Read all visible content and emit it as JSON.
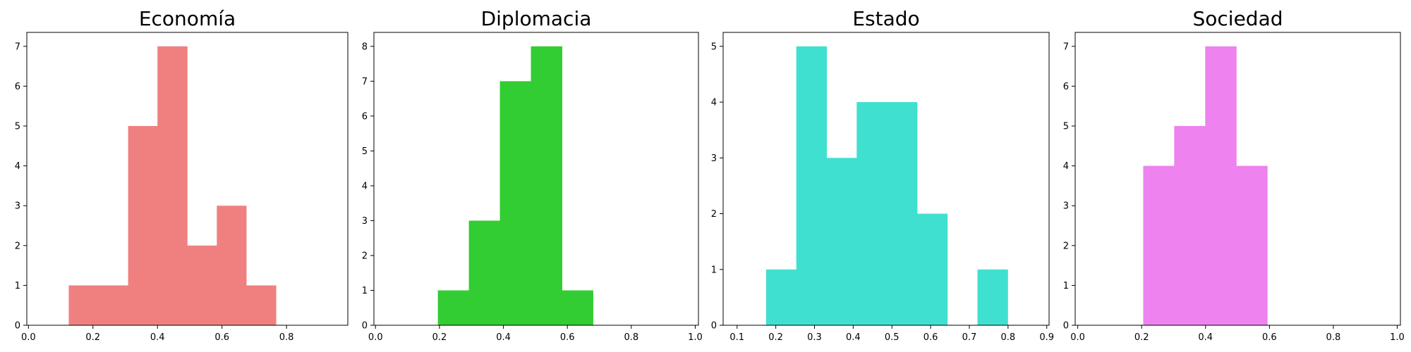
{
  "chart_data": [
    {
      "type": "bar",
      "subtype": "histogram",
      "title": "Economía",
      "color": "#f08080",
      "xlim": [
        -0.005,
        0.99
      ],
      "ylim": [
        0,
        7.35
      ],
      "xticks": [
        0.0,
        0.2,
        0.4,
        0.6,
        0.8
      ],
      "xtick_labels": [
        "0.0",
        "0.2",
        "0.4",
        "0.6",
        "0.8"
      ],
      "yticks": [
        0,
        1,
        2,
        3,
        4,
        5,
        6,
        7
      ],
      "ytick_labels": [
        "0",
        "1",
        "2",
        "3",
        "4",
        "5",
        "6",
        "7"
      ],
      "bins": [
        {
          "x0": 0.125,
          "x1": 0.217,
          "value": 1
        },
        {
          "x0": 0.217,
          "x1": 0.309,
          "value": 1
        },
        {
          "x0": 0.309,
          "x1": 0.4,
          "value": 5
        },
        {
          "x0": 0.4,
          "x1": 0.492,
          "value": 7
        },
        {
          "x0": 0.492,
          "x1": 0.584,
          "value": 2
        },
        {
          "x0": 0.584,
          "x1": 0.675,
          "value": 3
        },
        {
          "x0": 0.675,
          "x1": 0.767,
          "value": 1
        }
      ]
    },
    {
      "type": "bar",
      "subtype": "histogram",
      "title": "Diplomacia",
      "color": "#32cd32",
      "xlim": [
        -0.005,
        1.01
      ],
      "ylim": [
        0,
        8.4
      ],
      "xticks": [
        0.0,
        0.2,
        0.4,
        0.6,
        0.8,
        1.0
      ],
      "xtick_labels": [
        "0.0",
        "0.2",
        "0.4",
        "0.6",
        "0.8",
        "1.0"
      ],
      "yticks": [
        0,
        1,
        2,
        3,
        4,
        5,
        6,
        7,
        8
      ],
      "ytick_labels": [
        "0",
        "1",
        "2",
        "3",
        "4",
        "5",
        "6",
        "7",
        "8"
      ],
      "bins": [
        {
          "x0": 0.195,
          "x1": 0.292,
          "value": 1
        },
        {
          "x0": 0.292,
          "x1": 0.389,
          "value": 3
        },
        {
          "x0": 0.389,
          "x1": 0.486,
          "value": 7
        },
        {
          "x0": 0.486,
          "x1": 0.583,
          "value": 8
        },
        {
          "x0": 0.583,
          "x1": 0.68,
          "value": 1
        }
      ]
    },
    {
      "type": "bar",
      "subtype": "histogram",
      "title": "Estado",
      "color": "#40e0d0",
      "xlim": [
        0.064,
        0.906
      ],
      "ylim": [
        0,
        5.25
      ],
      "xticks": [
        0.1,
        0.2,
        0.3,
        0.4,
        0.5,
        0.6,
        0.7,
        0.8,
        0.9
      ],
      "xtick_labels": [
        "0.1",
        "0.2",
        "0.3",
        "0.4",
        "0.5",
        "0.6",
        "0.7",
        "0.8",
        "0.9"
      ],
      "yticks": [
        0,
        1,
        2,
        3,
        4,
        5
      ],
      "ytick_labels": [
        "0",
        "1",
        "2",
        "3",
        "4",
        "5"
      ],
      "bins": [
        {
          "x0": 0.175,
          "x1": 0.253,
          "value": 1
        },
        {
          "x0": 0.253,
          "x1": 0.331,
          "value": 5
        },
        {
          "x0": 0.331,
          "x1": 0.409,
          "value": 3
        },
        {
          "x0": 0.409,
          "x1": 0.487,
          "value": 4
        },
        {
          "x0": 0.487,
          "x1": 0.565,
          "value": 4
        },
        {
          "x0": 0.565,
          "x1": 0.643,
          "value": 2
        },
        {
          "x0": 0.643,
          "x1": 0.721,
          "value": 0
        },
        {
          "x0": 0.721,
          "x1": 0.799,
          "value": 1
        }
      ]
    },
    {
      "type": "bar",
      "subtype": "histogram",
      "title": "Sociedad",
      "color": "#ee82ee",
      "xlim": [
        -0.008,
        1.01
      ],
      "ylim": [
        0,
        7.35
      ],
      "xticks": [
        0.0,
        0.2,
        0.4,
        0.6,
        0.8,
        1.0
      ],
      "xtick_labels": [
        "0.0",
        "0.2",
        "0.4",
        "0.6",
        "0.8",
        "1.0"
      ],
      "yticks": [
        0,
        1,
        2,
        3,
        4,
        5,
        6,
        7
      ],
      "ytick_labels": [
        "0",
        "1",
        "2",
        "3",
        "4",
        "5",
        "6",
        "7"
      ],
      "bins": [
        {
          "x0": 0.205,
          "x1": 0.302,
          "value": 4
        },
        {
          "x0": 0.302,
          "x1": 0.399,
          "value": 5
        },
        {
          "x0": 0.399,
          "x1": 0.496,
          "value": 7
        },
        {
          "x0": 0.496,
          "x1": 0.593,
          "value": 4
        }
      ]
    }
  ]
}
